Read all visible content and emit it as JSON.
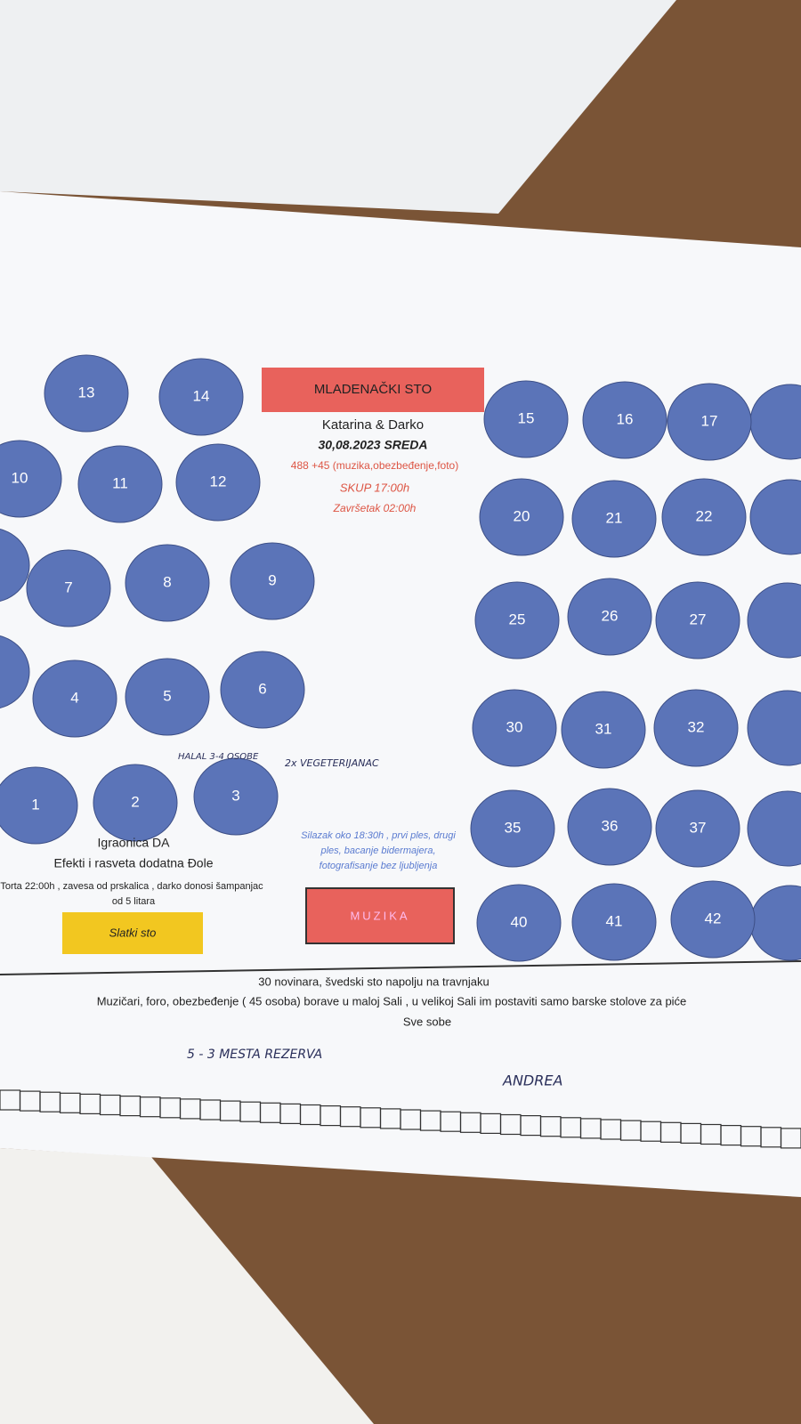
{
  "header": {
    "title": "MLADENAČKI STO",
    "couple": "Katarina & Darko",
    "date": "30,08.2023 SREDA",
    "guests": "488 +45 (muzika,obezbeđenje,foto)",
    "start": "SKUP 17:00h",
    "end": "Završetak 02:00h"
  },
  "left_notes": {
    "line1": "Igraonica DA",
    "line2": "Efekti i rasveta dodatna Đole",
    "line3": "Torta 22:00h , zavesa od prskalica , darko donosi šampanjac",
    "line4": "od 5 litara",
    "button": "Slatki sto"
  },
  "center_notes": {
    "lines": [
      "Silazak oko 18:30h , prvi ples, drugi",
      "ples, bacanje bidermajera,",
      "fotografisanje bez ljubljenja"
    ],
    "button": "MUZIKA"
  },
  "footer": {
    "line1": "30 novinara, švedski sto napolju na travnjaku",
    "line2": "Muzičari, foro, obezbeđenje ( 45 osoba) borave u maloj Sali , u velikoj Sali im postaviti samo barske stolove za piće",
    "line3": "Sve sobe"
  },
  "tables": [
    "13",
    "14",
    "10",
    "11",
    "12",
    "7",
    "8",
    "9",
    "4",
    "5",
    "6",
    "1",
    "2",
    "3",
    "15",
    "16",
    "17",
    "20",
    "21",
    "22",
    "25",
    "26",
    "27",
    "30",
    "31",
    "32",
    "35",
    "36",
    "37",
    "40",
    "41",
    "42"
  ],
  "handwritten": [
    "HALAL 3-4 OSOBE",
    "2x VEGETERIJANAC",
    "5 - 3 MESTA REZERVA",
    "ANDREA"
  ]
}
